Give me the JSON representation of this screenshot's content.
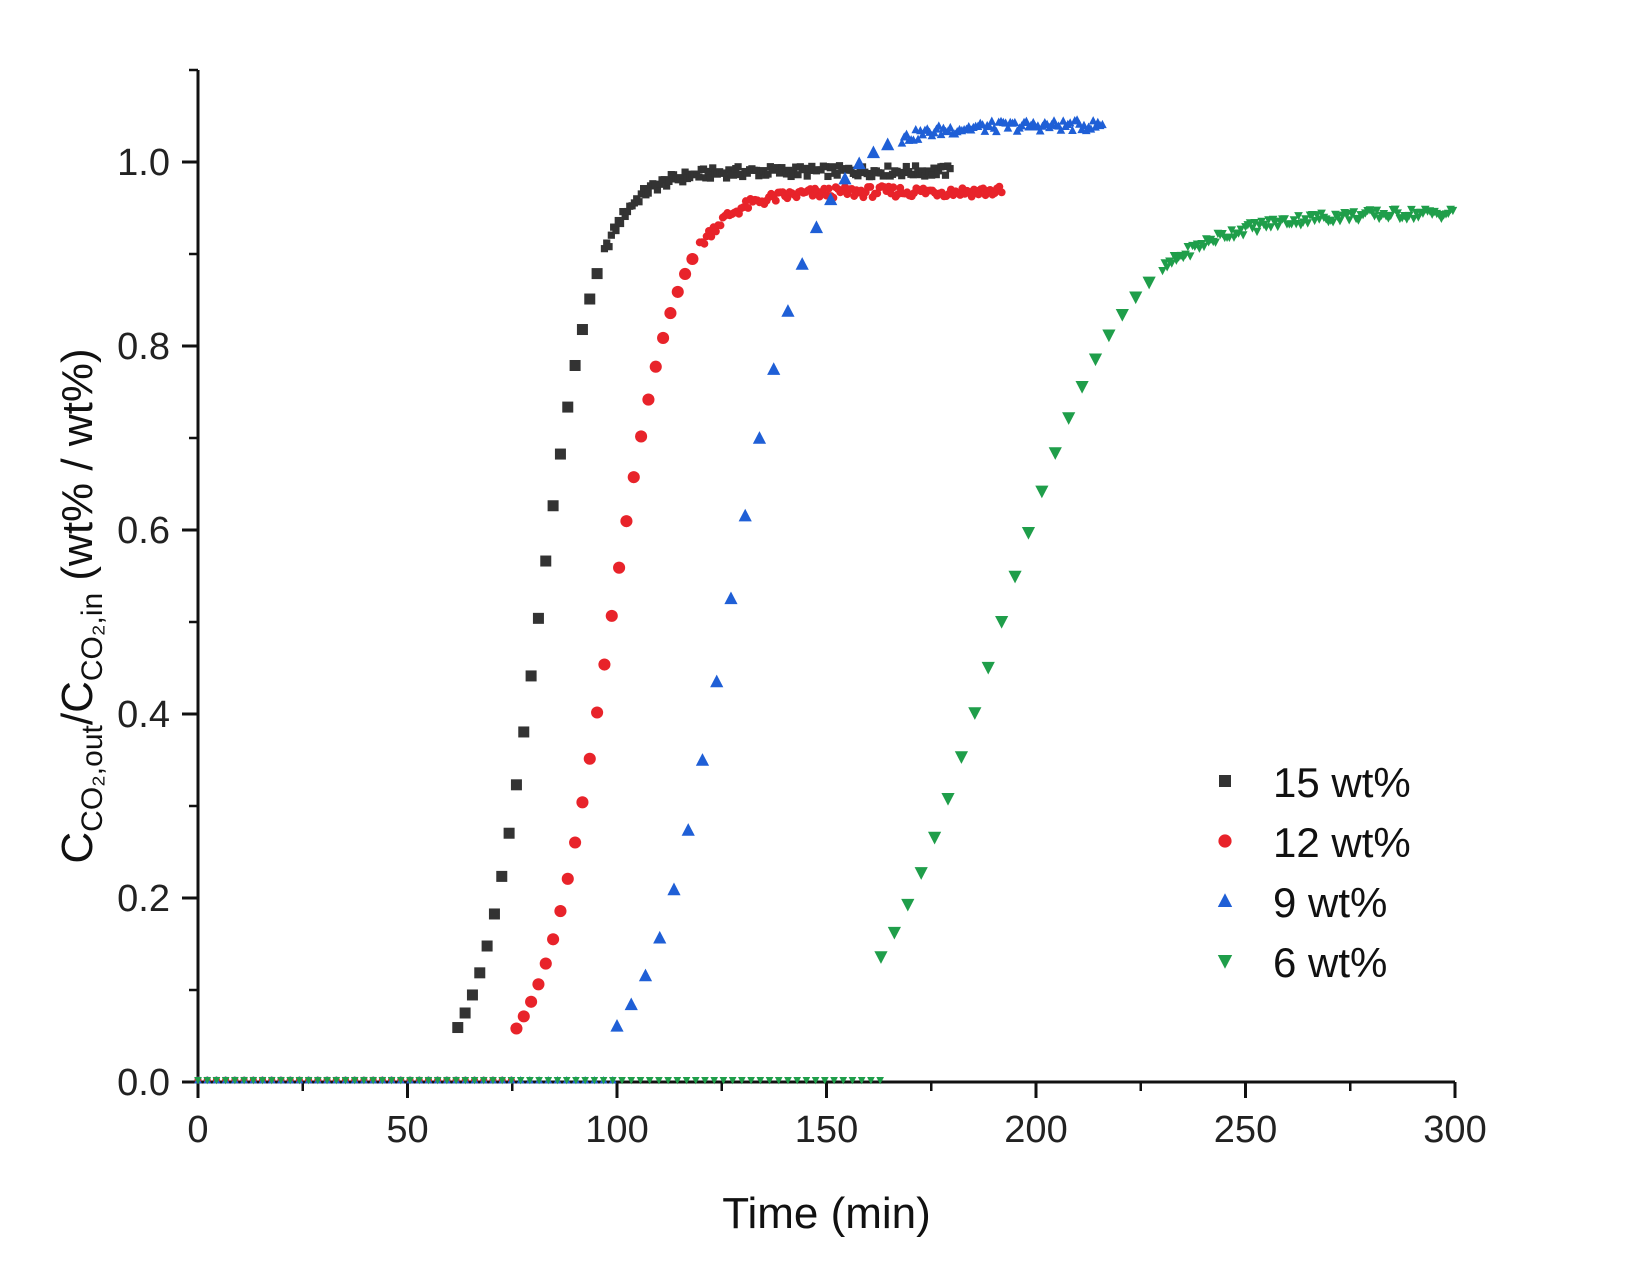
{
  "chart_data": {
    "type": "scatter",
    "title": "",
    "xlabel": "Time (min)",
    "ylabel": {
      "main": "C",
      "sub1": "CO₂,out",
      "slash": "/C",
      "sub2": "CO₂,in",
      "unit": " (wt% / wt%)"
    },
    "xlim": [
      0,
      300
    ],
    "ylim": [
      0,
      1.1
    ],
    "x_ticks": [
      "0",
      "50",
      "100",
      "150",
      "200",
      "250",
      "300"
    ],
    "y_ticks": [
      "0.0",
      "0.2",
      "0.4",
      "0.6",
      "0.8",
      "1.0"
    ],
    "legend_position": "bottom-right",
    "series": [
      {
        "name": "15 wt%",
        "color": "#333333",
        "marker": "square",
        "start": 62,
        "t50": 81,
        "k": 0.145,
        "plateau": 0.99,
        "end": 180,
        "step": 1.75,
        "dense_after_y": 0.88,
        "baseline_end": 62
      },
      {
        "name": "12 wt%",
        "color": "#e8232a",
        "marker": "circle",
        "start": 76,
        "t50": 98,
        "k": 0.125,
        "plateau": 0.968,
        "end": 192,
        "step": 1.75,
        "dense_after_y": 0.9,
        "baseline_end": 76
      },
      {
        "name": "9 wt%",
        "color": "#1f5fd6",
        "marker": "triangle-up",
        "start": 100,
        "t50": 127,
        "k": 0.103,
        "plateau": 1.04,
        "end": 216,
        "step": 3.4,
        "dense_after_y": 1.02,
        "baseline_end": 100
      },
      {
        "name": "6 wt%",
        "color": "#1f9e4a",
        "marker": "triangle-down",
        "start": 163,
        "t50": 190,
        "k": 0.066,
        "plateau": 0.945,
        "end": 300,
        "step": 3.2,
        "dense_after_y": 0.87,
        "baseline_end": 163
      }
    ]
  }
}
